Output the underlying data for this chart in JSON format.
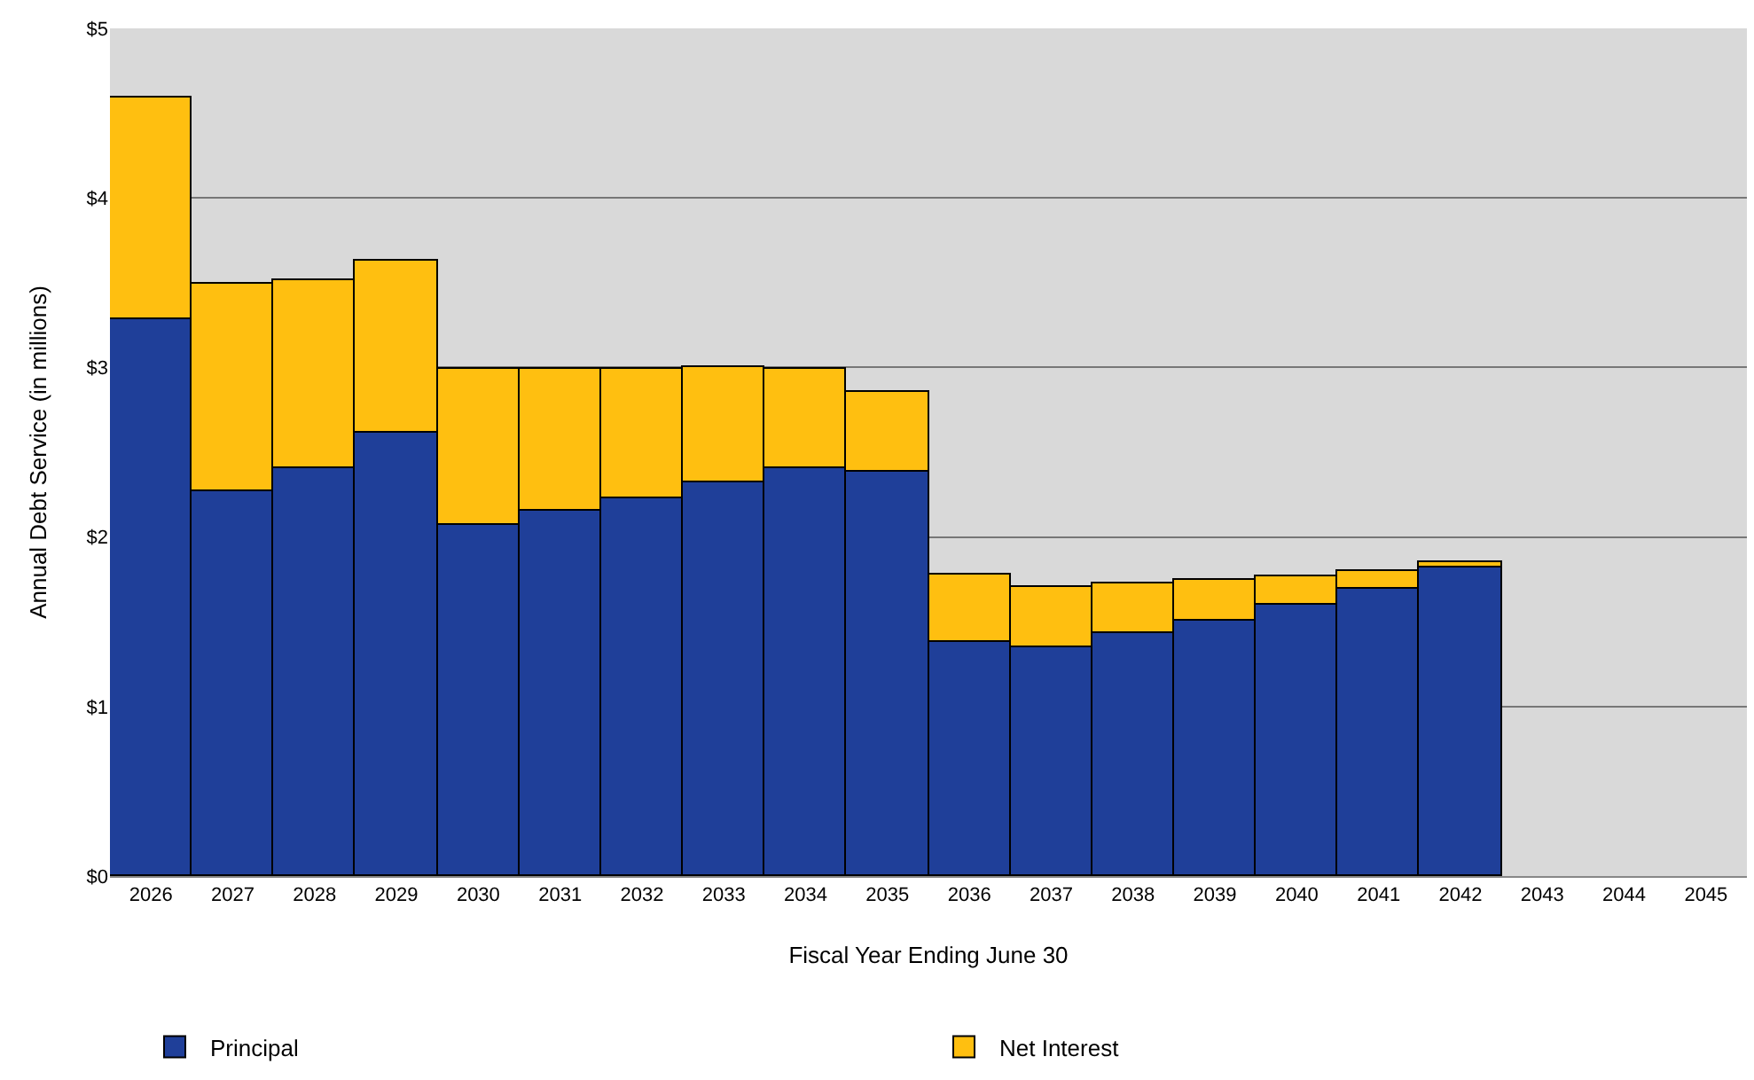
{
  "chart_data": {
    "type": "bar",
    "stacked": true,
    "xlabel": "Fiscal Year Ending June 30",
    "ylabel": "Annual Debt Service (in millions)",
    "categories": [
      "2026",
      "2027",
      "2028",
      "2029",
      "2030",
      "2031",
      "2032",
      "2033",
      "2034",
      "2035",
      "2036",
      "2037",
      "2038",
      "2039",
      "2040",
      "2041",
      "2042",
      "2043",
      "2044",
      "2045"
    ],
    "series": [
      {
        "name": "Principal",
        "color": "#1f3f99",
        "values": [
          3.28,
          2.27,
          2.41,
          2.62,
          2.07,
          2.16,
          2.23,
          2.32,
          2.41,
          2.39,
          1.38,
          1.35,
          1.43,
          1.51,
          1.6,
          1.69,
          1.82,
          null,
          null,
          null
        ]
      },
      {
        "name": "Net Interest",
        "color": "#ffbf10",
        "values": [
          1.31,
          1.22,
          1.1,
          1.01,
          0.92,
          0.83,
          0.76,
          0.68,
          0.58,
          0.47,
          0.4,
          0.35,
          0.3,
          0.24,
          0.17,
          0.11,
          0.03,
          null,
          null,
          null
        ]
      }
    ],
    "ylim": [
      0,
      5
    ],
    "yticks": [
      {
        "value": 0,
        "label": "$0"
      },
      {
        "value": 1,
        "label": "$1"
      },
      {
        "value": 2,
        "label": "$2"
      },
      {
        "value": 3,
        "label": "$3"
      },
      {
        "value": 4,
        "label": "$4"
      },
      {
        "value": 5,
        "label": "$5"
      }
    ],
    "grid": "y",
    "legend": "bottom"
  }
}
